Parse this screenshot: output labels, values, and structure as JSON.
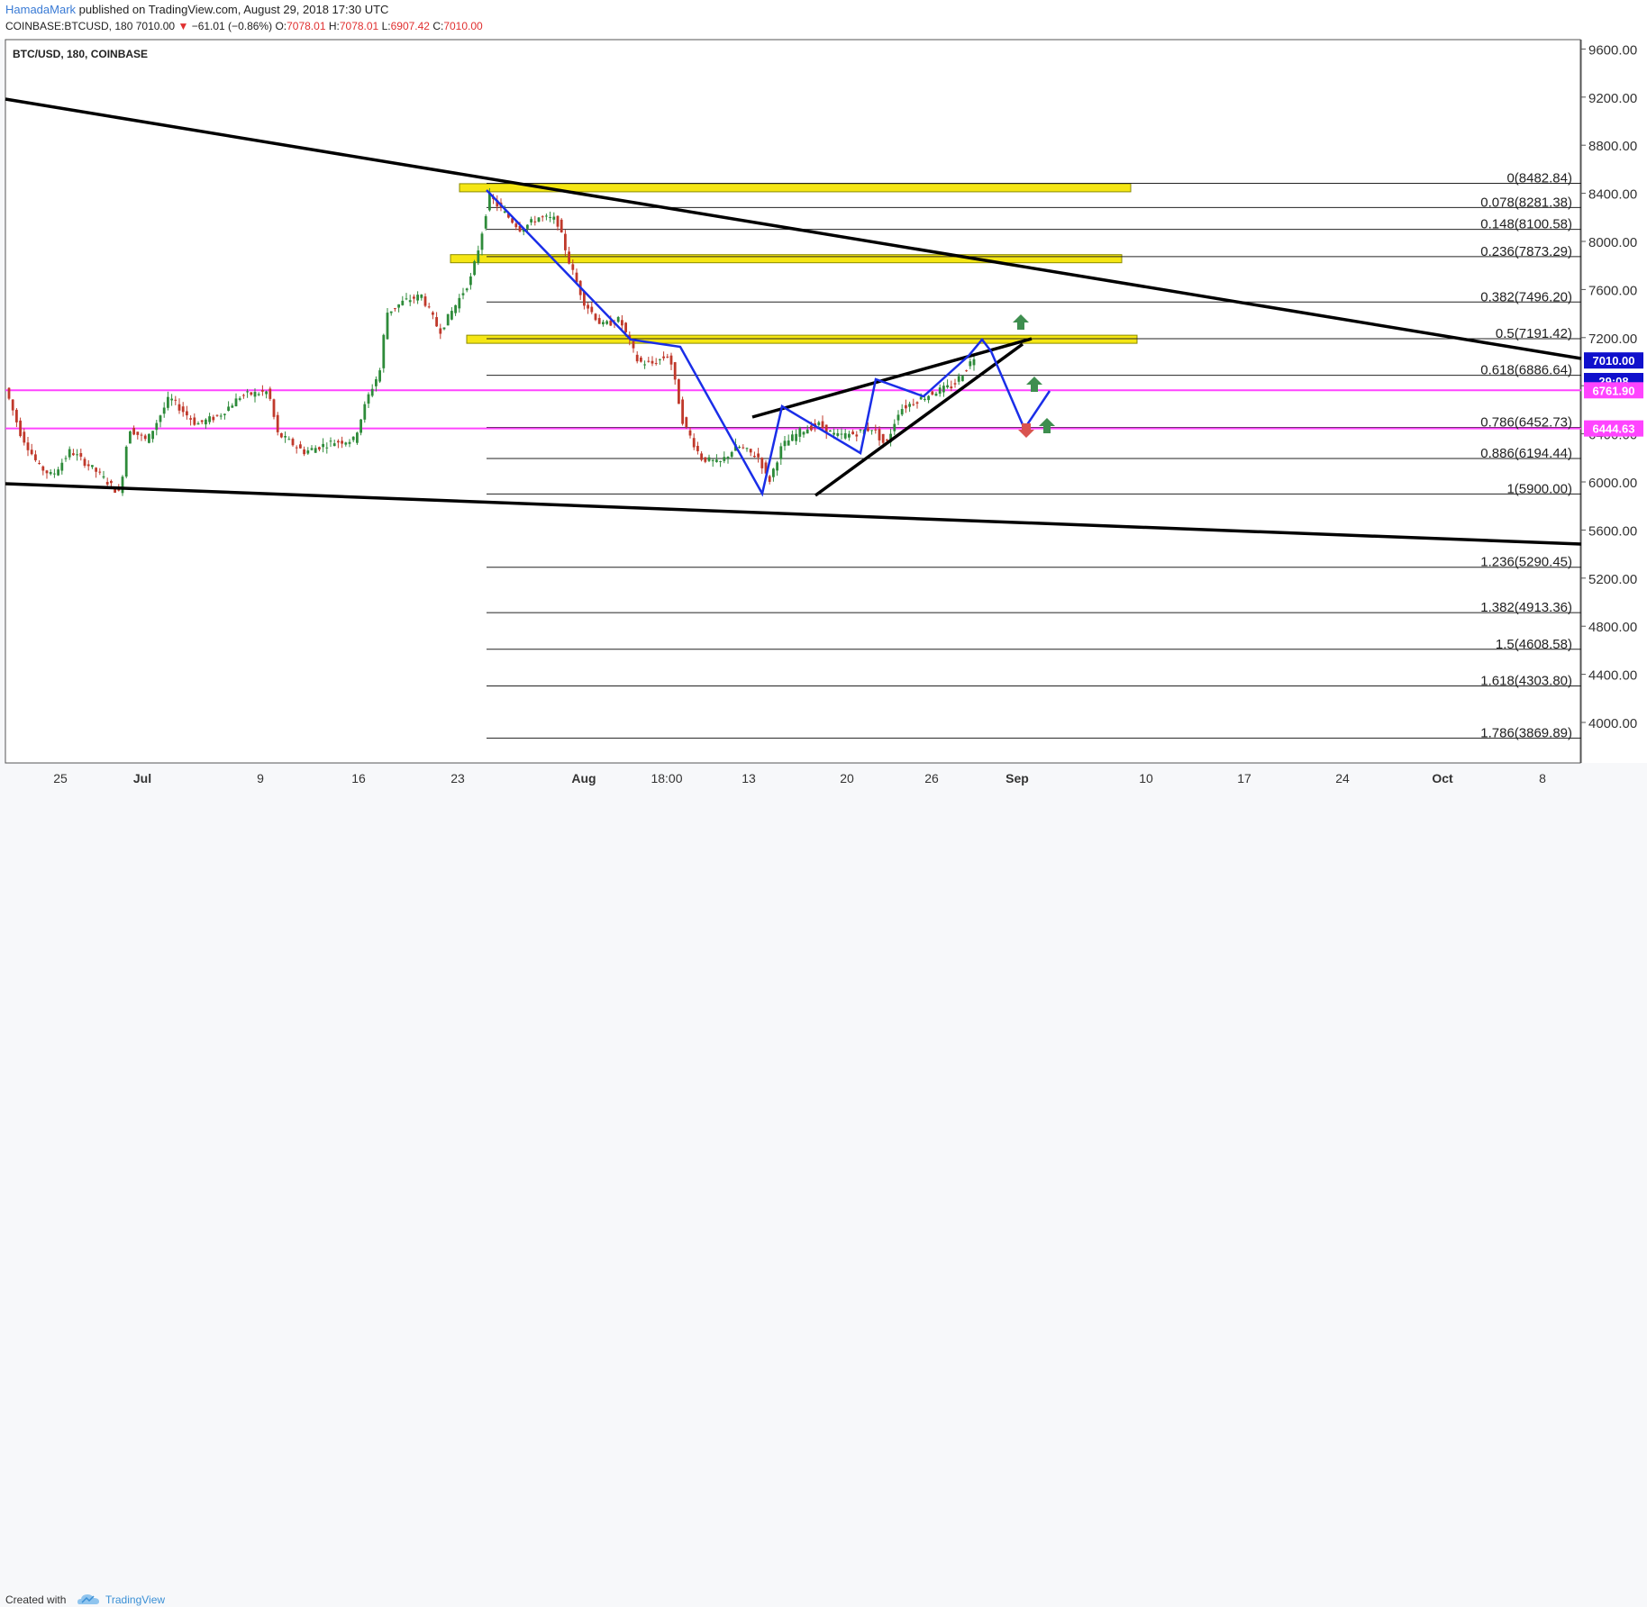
{
  "header": {
    "author": "HamadaMark",
    "published_text": "published on TradingView.com, August 29, 2018 17:30 UTC",
    "symbol": "COINBASE:BTCUSD, 180",
    "last": "7010.00",
    "change_arrow": "▼",
    "change": "−61.01 (−0.86%)",
    "o_label": "O:",
    "o": "7078.01",
    "h_label": "H:",
    "h": "7078.01",
    "l_label": "L:",
    "l": "6907.42",
    "c_label": "C:",
    "c": "7010.00"
  },
  "footer": {
    "created_with": "Created with",
    "brand": "TradingView",
    "logo_icon": "tradingview-cloud-icon"
  },
  "colors": {
    "up": "#2e8b3a",
    "down": "#c0392b",
    "fib_zone": "#f5e614",
    "support": "#ff44ff",
    "pattern": "#1a2ee8",
    "trend": "#000000",
    "arrow_up": "#3e8e4f",
    "arrow_down": "#d9534f"
  },
  "chart_data": {
    "type": "candlestick",
    "title": "BTC/USD, 180, COINBASE",
    "ylim": [
      3800,
      9800
    ],
    "y_ticks": [
      "9600.00",
      "9200.00",
      "8800.00",
      "8400.00",
      "8000.00",
      "7600.00",
      "7200.00",
      "6800.00",
      "6400.00",
      "6000.00",
      "5600.00",
      "5200.00",
      "4800.00",
      "4400.00",
      "4000.00"
    ],
    "x_ticks": [
      "25",
      "Jul",
      "9",
      "16",
      "23",
      "Aug",
      "18:00",
      "13",
      "20",
      "26",
      "Sep",
      "10",
      "17",
      "24",
      "Oct",
      "8"
    ],
    "fib_levels": [
      {
        "label": "0(8482.84)",
        "value": 8482.84
      },
      {
        "label": "0.078(8281.38)",
        "value": 8281.38
      },
      {
        "label": "0.148(8100.58)",
        "value": 8100.58
      },
      {
        "label": "0.236(7873.29)",
        "value": 7873.29
      },
      {
        "label": "0.382(7496.20)",
        "value": 7496.2
      },
      {
        "label": "0.5(7191.42)",
        "value": 7191.42
      },
      {
        "label": "0.618(6886.64)",
        "value": 6886.64
      },
      {
        "label": "0.786(6452.73)",
        "value": 6452.73
      },
      {
        "label": "0.886(6194.44)",
        "value": 6194.44
      },
      {
        "label": "1(5900.00)",
        "value": 5900.0
      },
      {
        "label": "1.236(5290.45)",
        "value": 5290.45
      },
      {
        "label": "1.382(4913.36)",
        "value": 4913.36
      },
      {
        "label": "1.5(4608.58)",
        "value": 4608.58
      },
      {
        "label": "1.618(4303.80)",
        "value": 4303.8
      },
      {
        "label": "1.786(3869.89)",
        "value": 3869.89
      }
    ],
    "horizontal_lines": [
      {
        "label": "6761.90",
        "value": 6761.9
      },
      {
        "label": "6444.63",
        "value": 6444.63
      }
    ],
    "price_tags": [
      {
        "label": "7010.00",
        "value": 7010.0
      },
      {
        "label": "29:08"
      }
    ]
  }
}
